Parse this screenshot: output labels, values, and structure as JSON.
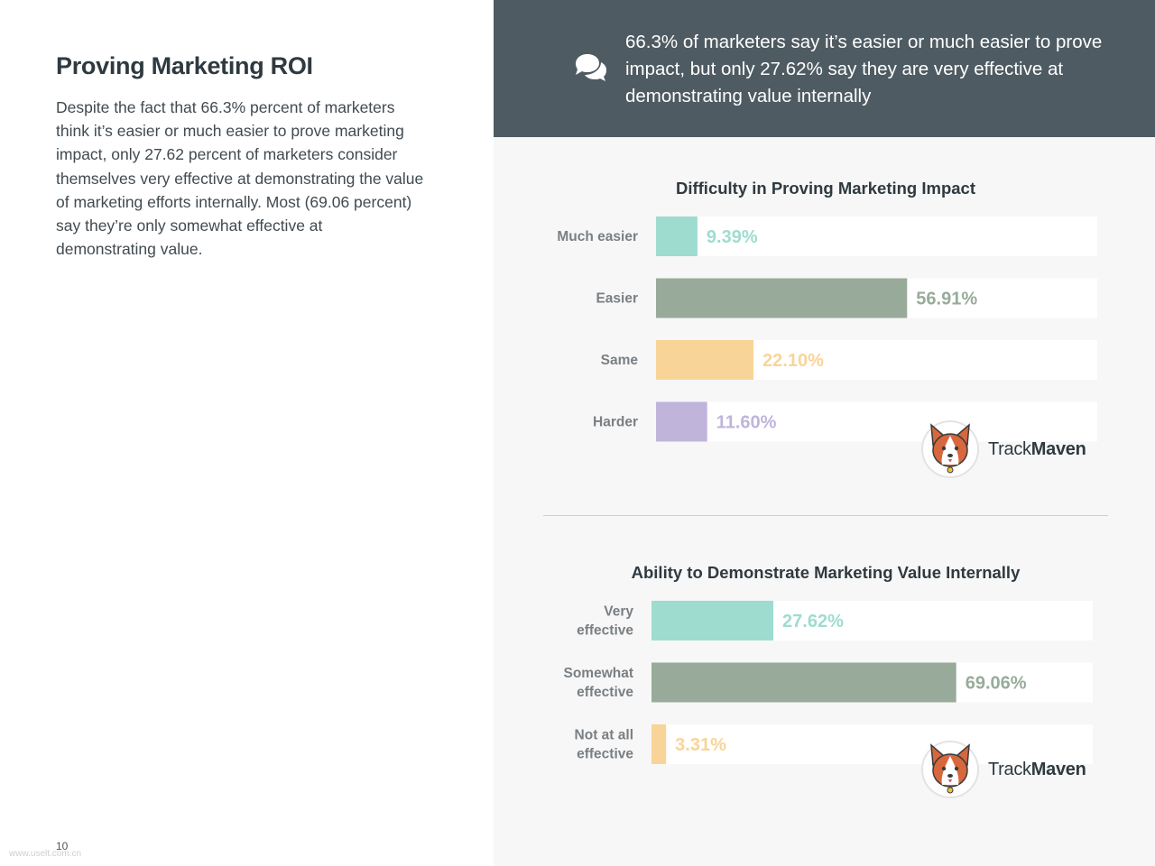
{
  "page": {
    "title": "Proving Marketing ROI",
    "body": "Despite the fact that 66.3% percent of marketers think it’s easier or much easier to prove marketing impact, only 27.62 percent of marketers consider themselves very effective at demonstrating the value of marketing efforts internally. Most (69.06 percent) say they’re only somewhat effective at demonstrating value.",
    "page_number": "10",
    "watermark": "www.uselt.com.cn"
  },
  "banner": {
    "icon": "speech-bubbles-icon",
    "quote": "66.3% of marketers say it’s easier or much easier to prove impact, but only 27.62% say they are very effective at demonstrating value internally"
  },
  "logo": {
    "name_part1": "Track",
    "name_part2": "Maven",
    "icon": "corgi-mascot-icon"
  },
  "colors": {
    "banner_bg": "#4f5b62",
    "right_bg": "#f7f7f7",
    "teal": "#9edccf",
    "sage": "#98ab9a",
    "peach": "#f9d498",
    "lavender": "#c0b4db"
  },
  "chart_data": [
    {
      "type": "bar",
      "orientation": "horizontal",
      "title": "Difficulty in Proving Marketing Impact",
      "categories": [
        "Much easier",
        "Easier",
        "Same",
        "Harder"
      ],
      "values": [
        9.39,
        56.91,
        22.1,
        11.6
      ],
      "value_labels": [
        "9.39%",
        "56.91%",
        "22.10%",
        "11.60%"
      ],
      "colors": [
        "#9edccf",
        "#98ab9a",
        "#f9d498",
        "#c0b4db"
      ],
      "xlim": [
        0,
        100
      ]
    },
    {
      "type": "bar",
      "orientation": "horizontal",
      "title": "Ability to Demonstrate Marketing Value Internally",
      "categories": [
        [
          "Very",
          "effective"
        ],
        [
          "Somewhat",
          "effective"
        ],
        [
          "Not at all",
          "effective"
        ]
      ],
      "values": [
        27.62,
        69.06,
        3.31
      ],
      "value_labels": [
        "27.62%",
        "69.06%",
        "3.31%"
      ],
      "colors": [
        "#9edccf",
        "#98ab9a",
        "#f9d498"
      ],
      "xlim": [
        0,
        100
      ]
    }
  ]
}
